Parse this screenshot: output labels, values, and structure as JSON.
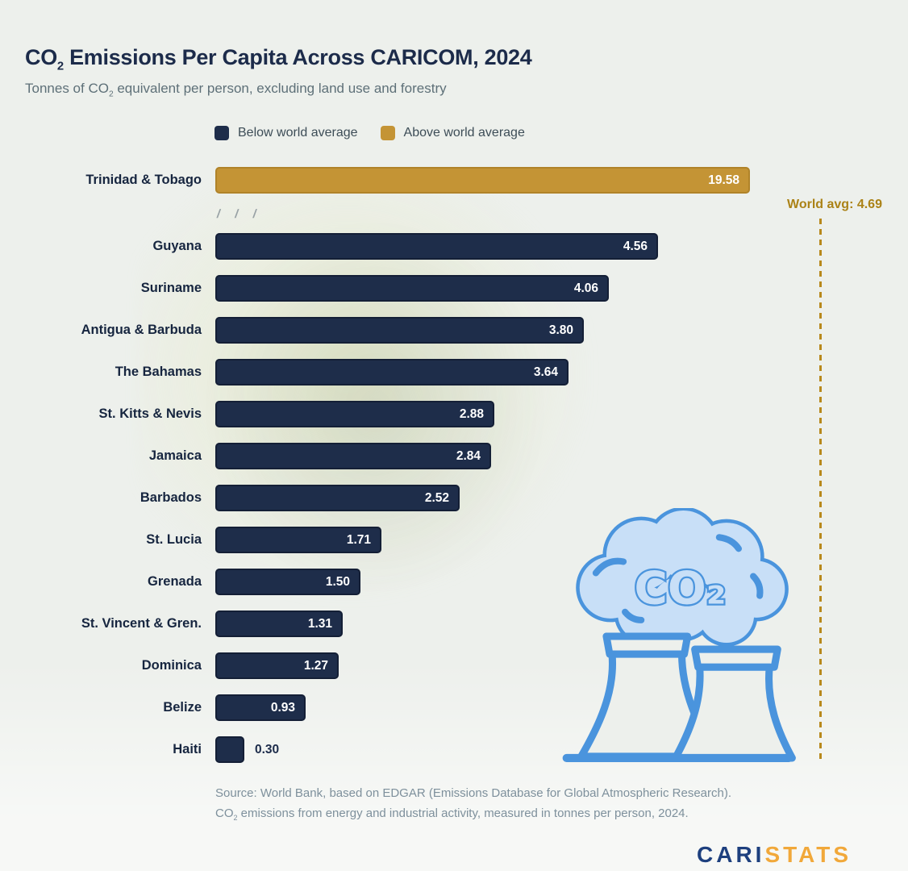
{
  "header": {
    "title_co": "CO",
    "title_sub": "2",
    "title_rest": " Emissions Per Capita Across CARICOM, 2024",
    "subtitle_co": "Tonnes of CO",
    "subtitle_sub": "2",
    "subtitle_rest": " equivalent per person, excluding land use and forestry"
  },
  "legend": {
    "below": {
      "label": "Below world average",
      "color": "#1e2d4a"
    },
    "above": {
      "label": "Above world average",
      "color": "#c49435"
    }
  },
  "chart_data": {
    "type": "bar",
    "orientation": "horizontal",
    "title": "CO2 Emissions Per Capita Across CARICOM, 2024",
    "subtitle": "Tonnes of CO2 equivalent per person, excluding land use and forestry",
    "unit": "tonnes CO2e per person",
    "rows": [
      {
        "country": "Trinidad & Tobago",
        "value": 19.58,
        "value_label": "19.58",
        "above_world_avg": true
      },
      {
        "country": "Guyana",
        "value": 4.56,
        "value_label": "4.56",
        "above_world_avg": false
      },
      {
        "country": "Suriname",
        "value": 4.06,
        "value_label": "4.06",
        "above_world_avg": false
      },
      {
        "country": "Antigua & Barbuda",
        "value": 3.8,
        "value_label": "3.80",
        "above_world_avg": false
      },
      {
        "country": "The Bahamas",
        "value": 3.64,
        "value_label": "3.64",
        "above_world_avg": false
      },
      {
        "country": "St. Kitts & Nevis",
        "value": 2.88,
        "value_label": "2.88",
        "above_world_avg": false
      },
      {
        "country": "Jamaica",
        "value": 2.84,
        "value_label": "2.84",
        "above_world_avg": false
      },
      {
        "country": "Barbados",
        "value": 2.52,
        "value_label": "2.52",
        "above_world_avg": false
      },
      {
        "country": "St. Lucia",
        "value": 1.71,
        "value_label": "1.71",
        "above_world_avg": false
      },
      {
        "country": "Grenada",
        "value": 1.5,
        "value_label": "1.50",
        "above_world_avg": false
      },
      {
        "country": "St. Vincent & Gren.",
        "value": 1.31,
        "value_label": "1.31",
        "above_world_avg": false
      },
      {
        "country": "Dominica",
        "value": 1.27,
        "value_label": "1.27",
        "above_world_avg": false
      },
      {
        "country": "Belize",
        "value": 0.93,
        "value_label": "0.93",
        "above_world_avg": false
      },
      {
        "country": "Haiti",
        "value": 0.3,
        "value_label": "0.30",
        "above_world_avg": false
      }
    ],
    "world_avg": 4.69,
    "world_avg_label": "World avg: 4.69",
    "world_avg_color": "#ab8216",
    "axis_break": {
      "after_country": "Trinidad & Tobago",
      "marks": "/ / /"
    },
    "legend_position": "top",
    "grid": false
  },
  "icon": {
    "co2_label": "CO₂"
  },
  "source": {
    "line1": "Source: World Bank, based on EDGAR (Emissions Database for Global Atmospheric Research).",
    "line2_co": "CO",
    "line2_sub": "2",
    "line2_rest": " emissions from energy and industrial activity, measured in tonnes per person, 2024."
  },
  "logo": {
    "part1": "CARI",
    "part2": "STATS"
  }
}
